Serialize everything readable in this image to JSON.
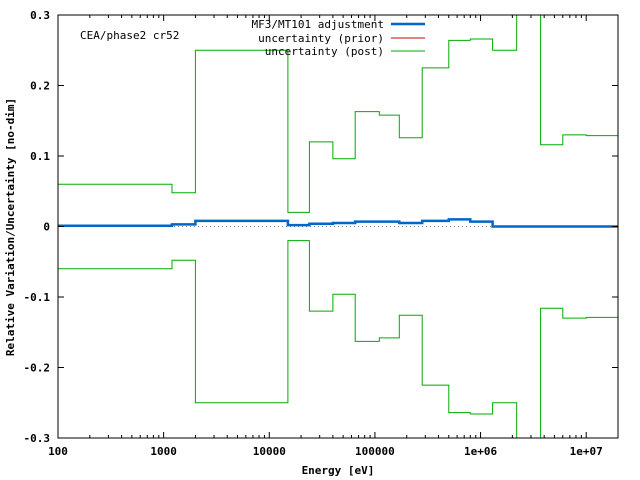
{
  "chart_data": {
    "type": "line",
    "title": "",
    "annotation": "CEA/phase2 cr52",
    "xlabel": "Energy [eV]",
    "ylabel": "Relative Variation/Uncertainty [no-dim]",
    "xscale": "log",
    "xlim": [
      100,
      20000000
    ],
    "ylim": [
      -0.3,
      0.3
    ],
    "yticks": [
      -0.3,
      -0.2,
      -0.1,
      0,
      0.1,
      0.2,
      0.3
    ],
    "ytick_labels": [
      "-0.3",
      "-0.2",
      "-0.1",
      "0",
      "0.1",
      "0.2",
      "0.3"
    ],
    "xticks": [
      100,
      1000,
      10000,
      100000,
      1000000,
      10000000
    ],
    "xtick_labels": [
      "100",
      "1000",
      "10000",
      "100000",
      "1e+06",
      "1e+07"
    ],
    "grid": false,
    "zero_line": true,
    "legend_position": "top-right",
    "bin_edges": [
      100,
      1200,
      2000,
      15000,
      24000,
      40000,
      65000,
      110000,
      170000,
      280000,
      500000,
      800000,
      1300000,
      2200000,
      3700000,
      6000000,
      10000000,
      20000000
    ],
    "series": [
      {
        "name": "MF3/MT101 adjustment",
        "color": "#0066cc",
        "style": "step",
        "values": [
          0.001,
          0.003,
          0.008,
          0.002,
          0.004,
          0.005,
          0.007,
          0.007,
          0.005,
          0.008,
          0.01,
          0.007,
          0.0,
          0.0,
          0.0,
          0.0,
          0.0
        ]
      },
      {
        "name": "uncertainty (prior)",
        "color": "#cc0000",
        "style": "step",
        "values": []
      },
      {
        "name": "uncertainty (post)",
        "color": "#00aa00",
        "style": "step-symmetric",
        "values": [
          0.06,
          0.048,
          0.25,
          0.02,
          0.12,
          0.096,
          0.163,
          0.158,
          0.126,
          0.225,
          0.264,
          0.266,
          0.25,
          0.3,
          0.116,
          0.13,
          0.129
        ]
      }
    ]
  }
}
